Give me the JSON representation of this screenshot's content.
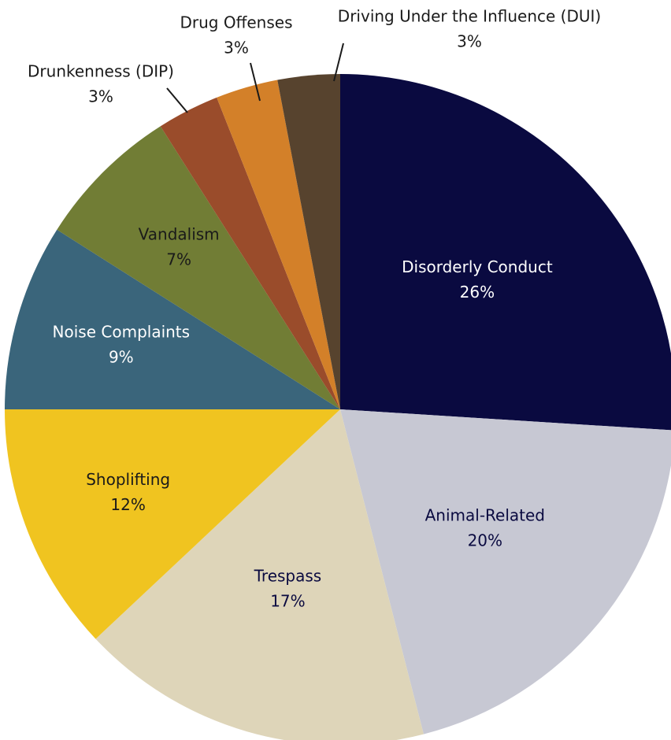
{
  "chart_data": {
    "type": "pie",
    "categories": [
      "Disorderly Conduct",
      "Animal-Related",
      "Trespass",
      "Shoplifting",
      "Noise Complaints",
      "Vandalism",
      "Drunkenness (DIP)",
      "Drug Offenses",
      "Driving Under the Influence (DUI)"
    ],
    "values": [
      26,
      20,
      17,
      12,
      9,
      7,
      3,
      3,
      3
    ],
    "value_labels": [
      "26%",
      "20%",
      "17%",
      "12%",
      "9%",
      "7%",
      "3%",
      "3%",
      "3%"
    ],
    "colors": [
      "#0a0a40",
      "#c7c8d3",
      "#ded5b9",
      "#f0c420",
      "#3a657b",
      "#717d35",
      "#9a4c2b",
      "#d38029",
      "#57432e"
    ],
    "label_colors": [
      "#ffffff",
      "#0a0a40",
      "#0a0a40",
      "#1a1a1a",
      "#ffffff",
      "#1a1a1a",
      "#1a1a1a",
      "#1a1a1a",
      "#1a1a1a"
    ]
  }
}
